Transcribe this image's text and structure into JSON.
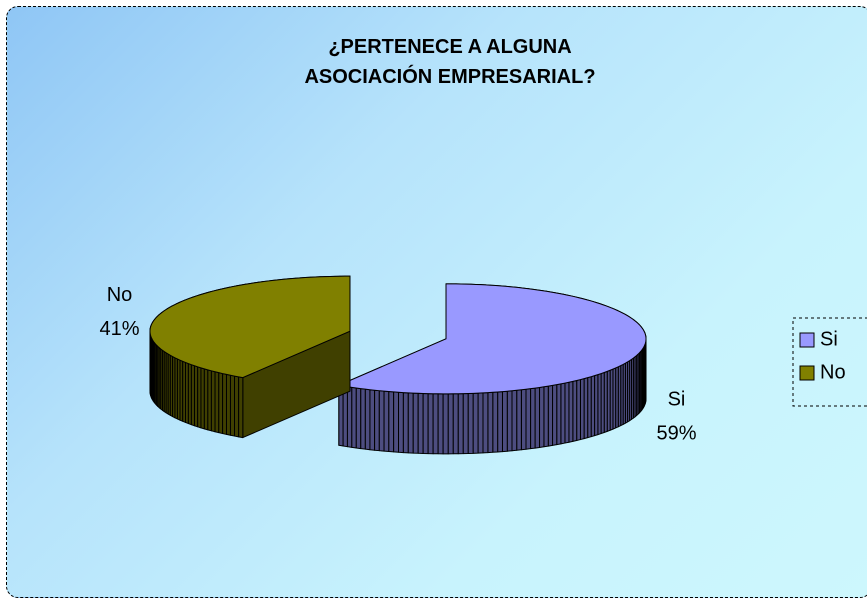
{
  "chart_data": {
    "type": "pie3d",
    "title": "¿PERTENECE A ALGUNA ASOCIACIÓN EMPRESARIAL?",
    "categories": [
      "Si",
      "No"
    ],
    "values": [
      59,
      41
    ],
    "value_labels": [
      "59%",
      "41%"
    ],
    "colors": [
      "#9999ff",
      "#808000"
    ],
    "legend": "right"
  }
}
